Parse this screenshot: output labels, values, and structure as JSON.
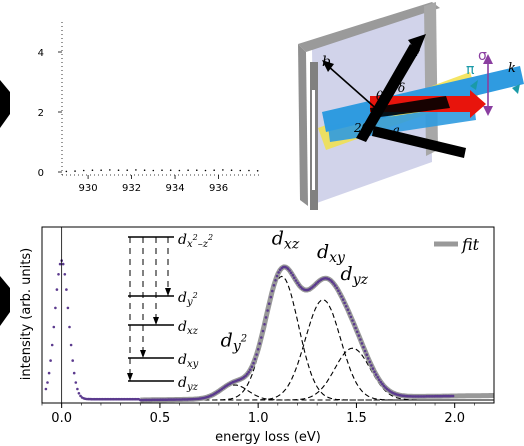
{
  "chart_data": [
    {
      "type": "scatter",
      "title": "",
      "xlabel": "",
      "ylabel": "",
      "x_ticks": [
        "930",
        "932",
        "934",
        "936"
      ],
      "y_ticks": [
        "0",
        "2",
        "4"
      ],
      "xlim": [
        928.8,
        938.0
      ],
      "ylim": [
        -0.1,
        5.0
      ],
      "grid": false,
      "series": [
        {
          "x": [
            929.0,
            929.4,
            929.8,
            930.2,
            930.6,
            931.0,
            931.4,
            931.8,
            932.2,
            932.6,
            933.0,
            933.4,
            933.8,
            934.2,
            934.6,
            935.0,
            935.4,
            935.8,
            936.2,
            936.6,
            937.0,
            937.4,
            937.8
          ],
          "values": [
            0.02,
            0.03,
            0.05,
            0.06,
            0.06,
            0.07,
            0.06,
            0.06,
            0.07,
            0.06,
            0.05,
            0.06,
            0.06,
            0.05,
            0.06,
            0.06,
            0.05,
            0.06,
            0.07,
            0.06,
            0.05,
            0.05,
            0.04
          ]
        }
      ]
    },
    {
      "type": "line",
      "title": "",
      "xlabel": "energy loss (eV)",
      "ylabel": "intensity (arb. units)",
      "x_ticks": [
        "0.0",
        "0.5",
        "1.0",
        "1.5",
        "2.0"
      ],
      "xlim": [
        -0.1,
        2.2
      ],
      "ylim": [
        0,
        1.0
      ],
      "grid": false,
      "legend": {
        "position": "top-right",
        "entries": [
          {
            "label": "fit",
            "color": "#999999"
          }
        ]
      },
      "data_color": "#5b3a8e",
      "fit_color": "#999999",
      "peak_labels": [
        {
          "text": "dxz",
          "x": 1.12,
          "y": 0.93
        },
        {
          "text": "dxy",
          "x": 1.35,
          "y": 0.85
        },
        {
          "text": "dyz",
          "x": 1.47,
          "y": 0.72
        },
        {
          "text": "dy2",
          "x": 0.86,
          "y": 0.32
        }
      ],
      "elastic_peak": {
        "center": 0.0,
        "height": 0.83,
        "width": 0.035
      },
      "components": [
        {
          "label": "dy2",
          "center": 0.88,
          "height": 0.09,
          "sigma": 0.07
        },
        {
          "label": "dxz",
          "center": 1.12,
          "height": 0.74,
          "sigma": 0.085
        },
        {
          "label": "dxy",
          "center": 1.33,
          "height": 0.6,
          "sigma": 0.09
        },
        {
          "label": "dyz",
          "center": 1.48,
          "height": 0.31,
          "sigma": 0.09
        }
      ],
      "orbital_labels": [
        "dx2-z2",
        "dy2",
        "dxz",
        "dxy",
        "dyz"
      ]
    }
  ],
  "diagram": {
    "labels": {
      "a": "a",
      "b": "b",
      "pi": "π",
      "sigma": "σ",
      "k": "k",
      "two_theta": "2θ",
      "delta": "δ",
      "theta_i": "θi",
      "q": "q"
    },
    "colors": {
      "slab": "#c9cbe6",
      "frame": "#8f8f8f",
      "beam_blue": "#2f9be0",
      "q_red": "#e8140c",
      "yellow": "#f2e04a",
      "black": "#000000",
      "pi_color": "#1a9aa8",
      "sigma_color": "#8a3ea0"
    }
  }
}
